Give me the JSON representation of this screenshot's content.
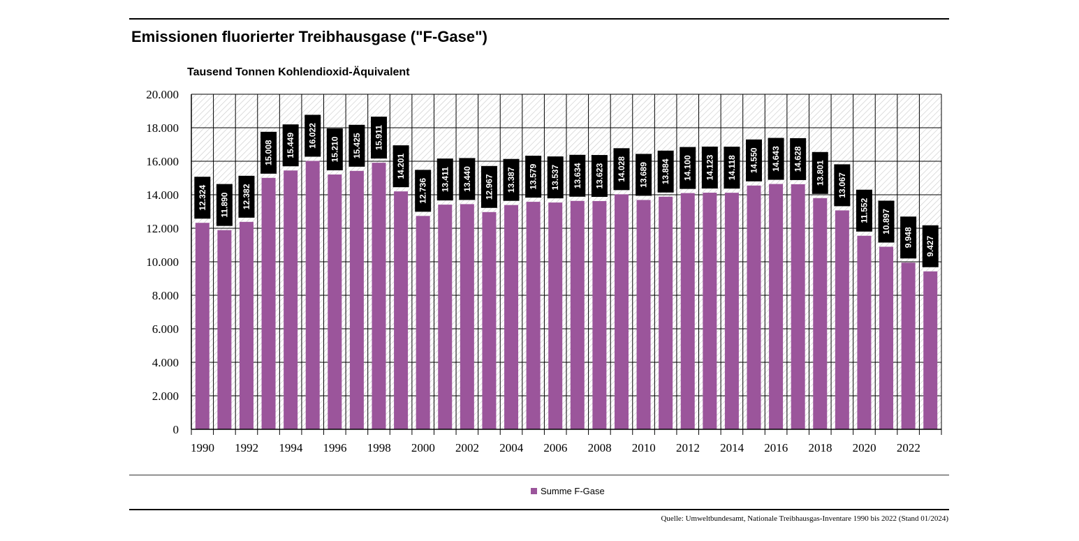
{
  "title": "Emissionen fluorierter Treibhausgase (\"F-Gase\")",
  "source": "Quelle: Umweltbundesamt, Nationale Treibhausgas-Inventare 1990 bis 2022 (Stand 01/2024)",
  "chart_data": {
    "type": "bar",
    "title": "Emissionen fluorierter Treibhausgase (\"F-Gase\")",
    "ylabel": "Tausend Tonnen Kohlendioxid-Äquivalent",
    "xlabel": "",
    "ylim": [
      0,
      20000
    ],
    "yticks": [
      0,
      2000,
      4000,
      6000,
      8000,
      10000,
      12000,
      14000,
      16000,
      18000,
      20000
    ],
    "ytick_labels": [
      "0",
      "2.000",
      "4.000",
      "6.000",
      "8.000",
      "10.000",
      "12.000",
      "14.000",
      "16.000",
      "18.000",
      "20.000"
    ],
    "categories": [
      "1990",
      "1991",
      "1992",
      "1993",
      "1994",
      "1995",
      "1996",
      "1997",
      "1998",
      "1999",
      "2000",
      "2001",
      "2002",
      "2003",
      "2004",
      "2005",
      "2006",
      "2007",
      "2008",
      "2009",
      "2010",
      "2011",
      "2012",
      "2013",
      "2014",
      "2015",
      "2016",
      "2017",
      "2018",
      "2019",
      "2020",
      "2021",
      "2022",
      "2023"
    ],
    "xtick_labels": [
      "1990",
      "1992",
      "1994",
      "1996",
      "1998",
      "2000",
      "2002",
      "2004",
      "2006",
      "2008",
      "2010",
      "2012",
      "2014",
      "2016",
      "2018",
      "2020",
      "2022"
    ],
    "series": [
      {
        "name": "Summe F-Gase",
        "color": "#9b559b",
        "values": [
          12324,
          11890,
          12382,
          15008,
          15449,
          16022,
          15210,
          15425,
          15911,
          14201,
          12736,
          13411,
          13440,
          12967,
          13387,
          13579,
          13537,
          13634,
          13623,
          14028,
          13689,
          13884,
          14100,
          14123,
          14118,
          14550,
          14643,
          14628,
          13801,
          13067,
          11552,
          10897,
          9948,
          9427
        ],
        "labels": [
          "12.324",
          "11.890",
          "12.382",
          "15.008",
          "15.449",
          "16.022",
          "15.210",
          "15.425",
          "15.911",
          "14.201",
          "12.736",
          "13.411",
          "13.440",
          "12.967",
          "13.387",
          "13.579",
          "13.537",
          "13.634",
          "13.623",
          "14.028",
          "13.689",
          "13.884",
          "14.100",
          "14.123",
          "14.118",
          "14.550",
          "14.643",
          "14.628",
          "13.801",
          "13.067",
          "11.552",
          "10.897",
          "9.948",
          "9.427"
        ]
      }
    ],
    "grid": true,
    "legend_position": "bottom-center",
    "plot_background": "hatched"
  }
}
